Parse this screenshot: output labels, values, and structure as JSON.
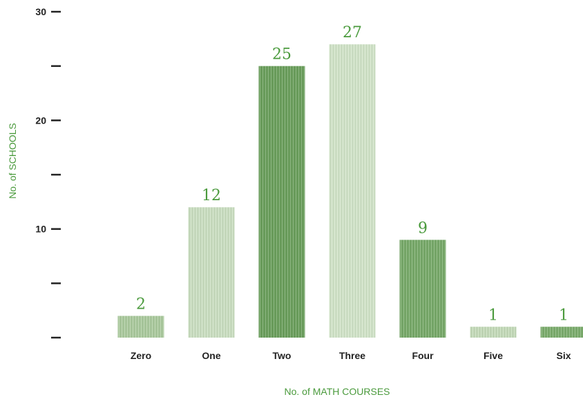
{
  "chart_data": {
    "type": "bar",
    "title": "",
    "xlabel": "No. of MATH COURSES",
    "ylabel": "No. of SCHOOLS",
    "categories": [
      "Zero",
      "One",
      "Two",
      "Three",
      "Four",
      "Five",
      "Six"
    ],
    "values": [
      2,
      12,
      25,
      27,
      9,
      1,
      1
    ],
    "data_labels": [
      "2",
      "12",
      "25",
      "27",
      "9",
      "1",
      "1"
    ],
    "ylim": [
      0,
      30
    ],
    "yticks": [
      0,
      5,
      10,
      15,
      20,
      25,
      30
    ],
    "ytick_labels": [
      "",
      "",
      "10",
      "",
      "20",
      "",
      "30"
    ],
    "grid": false,
    "legend": "none",
    "bar_colors": [
      "#a9c89c",
      "#c8dcbf",
      "#6a9e5c",
      "#cfe1c6",
      "#76a868",
      "#c2d8b7",
      "#7aab6c"
    ],
    "label_color": "#4a9a3c",
    "axis_title_color": "#4a9a3c"
  }
}
